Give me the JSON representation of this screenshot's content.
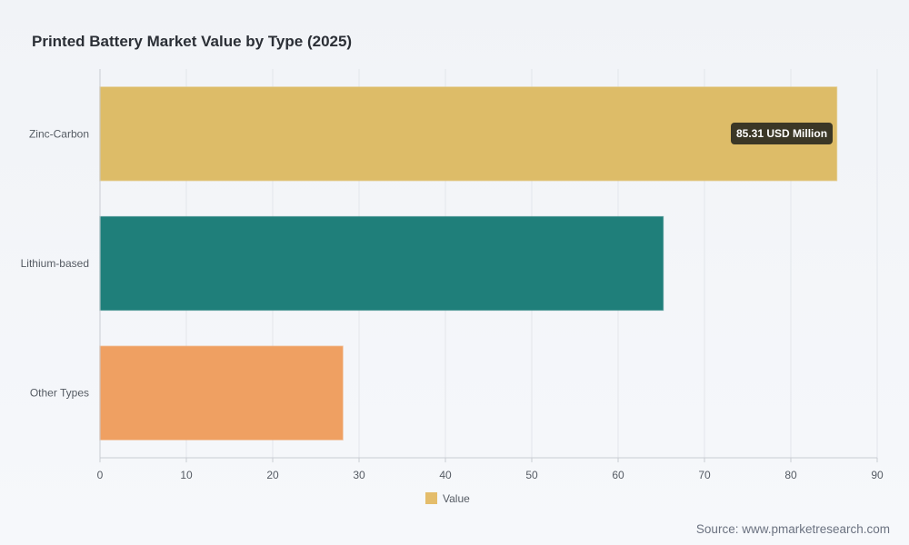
{
  "chart_data": {
    "type": "bar",
    "orientation": "horizontal",
    "title": "Printed Battery Market Value by Type (2025)",
    "categories": [
      "Zinc-Carbon",
      "Lithium-based",
      "Other Types"
    ],
    "series": [
      {
        "name": "Value",
        "values": [
          85.31,
          65.2,
          28.1
        ]
      }
    ],
    "bar_colors": [
      "#ddbc68",
      "#1f7f7a",
      "#efa062"
    ],
    "legend_color": "#e4bd6b",
    "xlim": [
      0,
      90
    ],
    "x_ticks": [
      "0",
      "10",
      "20",
      "30",
      "40",
      "50",
      "60",
      "70",
      "80",
      "90"
    ],
    "grid": true,
    "legend_position": "bottom",
    "tooltip": "85.31 USD Million"
  },
  "source": "Source: www.pmarketresearch.com"
}
